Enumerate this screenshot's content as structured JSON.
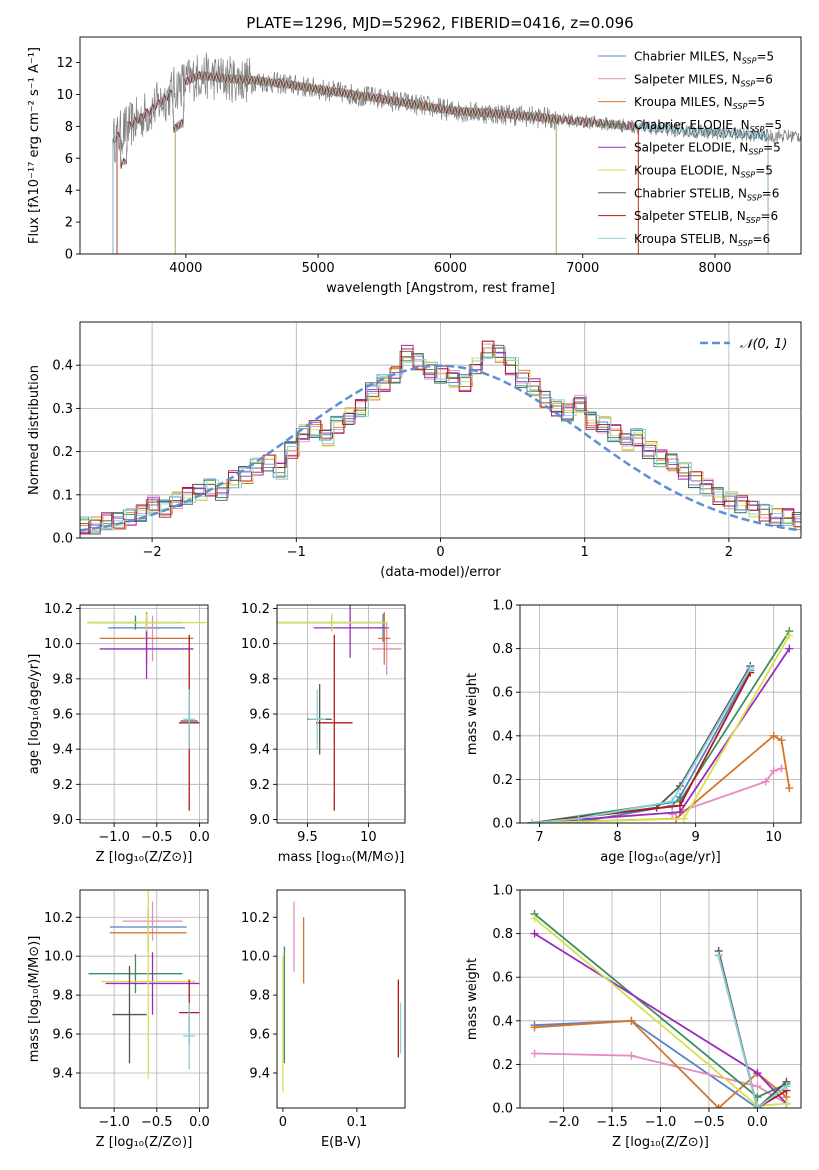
{
  "figure_title": "PLATE=1296, MJD=52962, FIBERID=0416, z=0.096",
  "colors": {
    "C0": "#5b7fc4",
    "C1": "#e58cc2",
    "C2": "#d4772c",
    "C3": "#3d8f5f",
    "C4": "#9a2bbf",
    "C5": "#d7e04f",
    "C6": "#555555",
    "C7": "#b21a1a",
    "C8": "#86d2d6",
    "data": "#808080",
    "normal": "#5b8fd6",
    "grid": "#b0b0b0"
  },
  "chart_data": [
    {
      "id": "spectrum",
      "type": "line",
      "xlabel": "wavelength [Angstrom, rest frame]",
      "ylabel": "Flux [fλ10⁻¹⁷ erg cm⁻² s⁻¹ A⁻¹]",
      "xlim": [
        3200,
        8650
      ],
      "ylim": [
        0,
        13.6
      ],
      "xticks": [
        4000,
        5000,
        6000,
        7000,
        8000
      ],
      "yticks": [
        0,
        2,
        4,
        6,
        8,
        10,
        12
      ],
      "grid": false,
      "legend_position": "top-right",
      "series": [
        {
          "name": "Chabrier MILES, N",
          "sub": "SSP",
          "suffix": "=5",
          "color": "C0"
        },
        {
          "name": "Salpeter MILES, N",
          "sub": "SSP",
          "suffix": "=6",
          "color": "C1"
        },
        {
          "name": "Kroupa MILES, N",
          "sub": "SSP",
          "suffix": "=5",
          "color": "C2"
        },
        {
          "name": "Chabrier ELODIE, N",
          "sub": "SSP",
          "suffix": "=5",
          "color": "C3"
        },
        {
          "name": "Salpeter ELODIE, N",
          "sub": "SSP",
          "suffix": "=5",
          "color": "C4"
        },
        {
          "name": "Kroupa ELODIE, N",
          "sub": "SSP",
          "suffix": "=5",
          "color": "C5"
        },
        {
          "name": "Chabrier STELIB, N",
          "sub": "SSP",
          "suffix": "=6",
          "color": "C6"
        },
        {
          "name": "Salpeter STELIB, N",
          "sub": "SSP",
          "suffix": "=6",
          "color": "C7"
        },
        {
          "name": "Kroupa STELIB, N",
          "sub": "SSP",
          "suffix": "=6",
          "color": "C8"
        }
      ],
      "model_continuum": [
        [
          3450,
          7.1
        ],
        [
          3550,
          7.9
        ],
        [
          3700,
          8.8
        ],
        [
          3850,
          9.8
        ],
        [
          3950,
          10.6
        ],
        [
          4100,
          11.2
        ],
        [
          4300,
          11.0
        ],
        [
          4500,
          10.9
        ],
        [
          4800,
          10.6
        ],
        [
          5100,
          10.2
        ],
        [
          5500,
          9.7
        ],
        [
          6000,
          9.0
        ],
        [
          6500,
          8.7
        ],
        [
          7000,
          8.3
        ],
        [
          7500,
          7.9
        ],
        [
          8000,
          7.6
        ],
        [
          8400,
          7.4
        ]
      ],
      "data_range": [
        3450,
        8650
      ]
    },
    {
      "id": "residuals",
      "type": "histogram",
      "xlabel": "(data-model)/error",
      "ylabel": "Normed distribution",
      "xlim": [
        -2.5,
        2.5
      ],
      "ylim": [
        0,
        0.5
      ],
      "xticks": [
        -2,
        -1,
        0,
        1,
        2
      ],
      "xtick_labels": [
        "−2",
        "−1",
        "0",
        "1",
        "2"
      ],
      "yticks": [
        0.0,
        0.1,
        0.2,
        0.3,
        0.4
      ],
      "grid": true,
      "legend": "𝒩(0, 1)",
      "legend_position": "top-right",
      "bin_width": 0.1,
      "reference_curve": "normal(0,1)",
      "approx_hist": [
        0.02,
        0.03,
        0.03,
        0.04,
        0.04,
        0.05,
        0.06,
        0.08,
        0.07,
        0.09,
        0.1,
        0.11,
        0.12,
        0.11,
        0.14,
        0.15,
        0.17,
        0.18,
        0.16,
        0.21,
        0.25,
        0.26,
        0.24,
        0.27,
        0.29,
        0.31,
        0.35,
        0.37,
        0.39,
        0.44,
        0.42,
        0.4,
        0.39,
        0.38,
        0.37,
        0.41,
        0.45,
        0.44,
        0.41,
        0.38,
        0.36,
        0.33,
        0.31,
        0.3,
        0.32,
        0.28,
        0.27,
        0.25,
        0.23,
        0.24,
        0.21,
        0.19,
        0.18,
        0.16,
        0.14,
        0.12,
        0.1,
        0.09,
        0.08,
        0.07,
        0.06,
        0.05,
        0.05,
        0.04,
        0.03,
        0.03,
        0.02,
        0.02,
        0.02,
        0.01,
        0.01,
        0.01,
        0.01
      ]
    },
    {
      "id": "age_vs_Z",
      "type": "scatter",
      "xlabel": "Z [log₁₀(Z/Z⊙)]",
      "ylabel": "age  [log₁₀(age/yr)]",
      "xlim": [
        -1.4,
        0.1
      ],
      "ylim": [
        8.98,
        10.22
      ],
      "xticks": [
        -1.0,
        -0.5,
        0.0
      ],
      "xtick_labels": [
        "−1.0",
        "−0.5",
        "0.0"
      ],
      "yticks": [
        9.0,
        9.2,
        9.4,
        9.6,
        9.8,
        10.0,
        10.2
      ],
      "grid": true,
      "points": [
        {
          "color": "C0",
          "x": -0.62,
          "xerr": 0.45,
          "y": 10.09,
          "yerr": 0.07
        },
        {
          "color": "C1",
          "x": -0.55,
          "xerr": 0.35,
          "y": 10.03,
          "yerr": 0.13
        },
        {
          "color": "C2",
          "x": -0.62,
          "xerr": 0.55,
          "y": 10.03,
          "yerr": 0.15
        },
        {
          "color": "C3",
          "x": -0.75,
          "xerr": 0.55,
          "y": 10.12,
          "yerr": 0.04
        },
        {
          "color": "C4",
          "x": -0.62,
          "xerr": 0.55,
          "y": 9.97,
          "yerr": 0.17
        },
        {
          "color": "C5",
          "x": -0.62,
          "xerr": 0.7,
          "y": 10.12,
          "yerr": 0.05
        },
        {
          "color": "C6",
          "x": -0.12,
          "xerr": 0.1,
          "y": 9.56,
          "yerr": 0.14
        },
        {
          "color": "C7",
          "x": -0.12,
          "xerr": 0.12,
          "y": 9.55,
          "yerr": 0.5
        },
        {
          "color": "C8",
          "x": -0.12,
          "xerr": 0.07,
          "y": 9.57,
          "yerr": 0.17
        }
      ]
    },
    {
      "id": "age_vs_mass",
      "type": "scatter",
      "xlabel": "mass [log₁₀(M/M⊙)]",
      "ylabel": "",
      "xlim": [
        9.25,
        10.3
      ],
      "ylim": [
        8.98,
        10.22
      ],
      "xticks": [
        9.5,
        10.0
      ],
      "yticks": [
        9.0,
        9.2,
        9.4,
        9.6,
        9.8,
        10.0,
        10.2
      ],
      "grid": true,
      "points": [
        {
          "color": "C0",
          "x": 10.12,
          "xerr": 0.05,
          "y": 10.09,
          "yerr": 0.08
        },
        {
          "color": "C1",
          "x": 10.15,
          "xerr": 0.12,
          "y": 9.97,
          "yerr": 0.15
        },
        {
          "color": "C2",
          "x": 10.13,
          "xerr": 0.05,
          "y": 10.03,
          "yerr": 0.15
        },
        {
          "color": "C3",
          "x": 9.7,
          "xerr": 0.45,
          "y": 10.12,
          "yerr": 0.05
        },
        {
          "color": "C4",
          "x": 9.85,
          "xerr": 0.3,
          "y": 10.09,
          "yerr": 0.17
        },
        {
          "color": "C5",
          "x": 9.7,
          "xerr": 0.45,
          "y": 10.12,
          "yerr": 0.05
        },
        {
          "color": "C6",
          "x": 9.6,
          "xerr": 0.1,
          "y": 9.57,
          "yerr": 0.2
        },
        {
          "color": "C7",
          "x": 9.72,
          "xerr": 0.15,
          "y": 9.55,
          "yerr": 0.5
        },
        {
          "color": "C8",
          "x": 9.58,
          "xerr": 0.07,
          "y": 9.57,
          "yerr": 0.17
        }
      ]
    },
    {
      "id": "weight_vs_age",
      "type": "line",
      "xlabel": "age  [log₁₀(age/yr)]",
      "ylabel": "mass weight",
      "xlim": [
        6.75,
        10.35
      ],
      "ylim": [
        0,
        1
      ],
      "xticks": [
        7,
        8,
        9,
        10
      ],
      "yticks": [
        0.0,
        0.2,
        0.4,
        0.6,
        0.8,
        1.0
      ],
      "grid": true,
      "series": [
        {
          "color": "C0",
          "points": [
            [
              6.9,
              0.0
            ],
            [
              7.6,
              0.01
            ],
            [
              8.7,
              0.08
            ],
            [
              8.8,
              0.12
            ],
            [
              9.7,
              0.7
            ]
          ]
        },
        {
          "color": "C1",
          "points": [
            [
              8.7,
              0.04
            ],
            [
              9.9,
              0.19
            ],
            [
              10.0,
              0.24
            ],
            [
              10.1,
              0.25
            ]
          ]
        },
        {
          "color": "C2",
          "points": [
            [
              6.9,
              0.0
            ],
            [
              8.75,
              0.02
            ],
            [
              10.0,
              0.4
            ],
            [
              10.1,
              0.38
            ],
            [
              10.2,
              0.16
            ]
          ]
        },
        {
          "color": "C3",
          "points": [
            [
              6.9,
              0.0
            ],
            [
              8.8,
              0.1
            ],
            [
              10.2,
              0.88
            ]
          ]
        },
        {
          "color": "C4",
          "points": [
            [
              6.9,
              0.0
            ],
            [
              8.8,
              0.05
            ],
            [
              10.2,
              0.8
            ]
          ]
        },
        {
          "color": "C5",
          "points": [
            [
              6.9,
              0.0
            ],
            [
              8.85,
              0.02
            ],
            [
              10.2,
              0.86
            ]
          ]
        },
        {
          "color": "C6",
          "points": [
            [
              6.9,
              0.0
            ],
            [
              8.5,
              0.07
            ],
            [
              8.8,
              0.17
            ],
            [
              9.7,
              0.72
            ]
          ]
        },
        {
          "color": "C7",
          "points": [
            [
              6.9,
              0.0
            ],
            [
              8.8,
              0.08
            ],
            [
              9.7,
              0.69
            ]
          ]
        },
        {
          "color": "C8",
          "points": [
            [
              6.9,
              0.0
            ],
            [
              7.5,
              0.02
            ],
            [
              8.7,
              0.1
            ],
            [
              9.7,
              0.71
            ]
          ]
        }
      ]
    },
    {
      "id": "mass_vs_Z",
      "type": "scatter",
      "xlabel": "Z [log₁₀(Z/Z⊙)]",
      "ylabel": "mass [log₁₀(M/M⊙)]",
      "xlim": [
        -1.4,
        0.1
      ],
      "ylim": [
        9.22,
        10.34
      ],
      "xticks": [
        -1.0,
        -0.5,
        0.0
      ],
      "xtick_labels": [
        "−1.0",
        "−0.5",
        "0.0"
      ],
      "yticks": [
        9.4,
        9.6,
        9.8,
        10.0,
        10.2
      ],
      "grid": true,
      "points": [
        {
          "color": "C0",
          "x": -0.6,
          "xerr": 0.45,
          "y": 10.15,
          "yerr": 0.1
        },
        {
          "color": "C1",
          "x": -0.55,
          "xerr": 0.35,
          "y": 10.18,
          "yerr": 0.1
        },
        {
          "color": "C2",
          "x": -0.6,
          "xerr": 0.45,
          "y": 10.12,
          "yerr": 0.1
        },
        {
          "color": "C3",
          "x": -0.75,
          "xerr": 0.55,
          "y": 9.91,
          "yerr": 0.1
        },
        {
          "color": "C4",
          "x": -0.55,
          "xerr": 0.55,
          "y": 9.86,
          "yerr": 0.16
        },
        {
          "color": "C5",
          "x": -0.6,
          "xerr": 0.55,
          "y": 9.87,
          "yerr": 0.5
        },
        {
          "color": "C6",
          "x": -0.82,
          "xerr": 0.2,
          "y": 9.7,
          "yerr": 0.25
        },
        {
          "color": "C7",
          "x": -0.12,
          "xerr": 0.12,
          "y": 9.71,
          "yerr": 0.17
        },
        {
          "color": "C8",
          "x": -0.12,
          "xerr": 0.07,
          "y": 9.59,
          "yerr": 0.17
        }
      ]
    },
    {
      "id": "mass_vs_EBV",
      "type": "scatter",
      "xlabel": "E(B-V)",
      "ylabel": "",
      "xlim": [
        -0.008,
        0.165
      ],
      "ylim": [
        9.22,
        10.34
      ],
      "xticks": [
        0.0,
        0.1
      ],
      "yticks": [
        9.4,
        9.6,
        9.8,
        10.0,
        10.2
      ],
      "grid": false,
      "points": [
        {
          "color": "C1",
          "x": 0.015,
          "xerr": 0.0,
          "y": 10.1,
          "yerr": 0.18
        },
        {
          "color": "C2",
          "x": 0.028,
          "xerr": 0.0,
          "y": 10.03,
          "yerr": 0.17
        },
        {
          "color": "C3",
          "x": 0.002,
          "xerr": 0.0,
          "y": 9.75,
          "yerr": 0.3
        },
        {
          "color": "C5",
          "x": 0.0,
          "xerr": 0.0,
          "y": 9.65,
          "yerr": 0.35
        },
        {
          "color": "C7",
          "x": 0.156,
          "xerr": 0.0,
          "y": 9.68,
          "yerr": 0.2
        },
        {
          "color": "C8",
          "x": 0.159,
          "xerr": 0.0,
          "y": 9.63,
          "yerr": 0.13
        }
      ]
    },
    {
      "id": "weight_vs_Z",
      "type": "line",
      "xlabel": "Z [log₁₀(Z/Z⊙)]",
      "ylabel": "mass weight",
      "xlim": [
        -2.45,
        0.45
      ],
      "ylim": [
        0,
        1
      ],
      "xticks": [
        -2.0,
        -1.5,
        -1.0,
        -0.5,
        0.0
      ],
      "xtick_labels": [
        "−2.0",
        "−1.5",
        "−1.0",
        "−0.5",
        "0.0"
      ],
      "yticks": [
        0.0,
        0.2,
        0.4,
        0.6,
        0.8,
        1.0
      ],
      "grid": true,
      "series": [
        {
          "color": "C0",
          "points": [
            [
              -2.3,
              0.38
            ],
            [
              -1.3,
              0.4
            ],
            [
              0.0,
              0.0
            ],
            [
              0.3,
              0.1
            ]
          ]
        },
        {
          "color": "C1",
          "points": [
            [
              -2.3,
              0.25
            ],
            [
              -1.3,
              0.24
            ],
            [
              0.0,
              0.1
            ],
            [
              0.3,
              0.02
            ]
          ]
        },
        {
          "color": "C2",
          "points": [
            [
              -2.3,
              0.37
            ],
            [
              -1.3,
              0.4
            ],
            [
              -0.4,
              0.0
            ],
            [
              0.0,
              0.16
            ],
            [
              0.3,
              0.05
            ]
          ]
        },
        {
          "color": "C3",
          "points": [
            [
              -2.3,
              0.89
            ],
            [
              0.0,
              0.05
            ],
            [
              0.3,
              0.11
            ]
          ]
        },
        {
          "color": "C4",
          "points": [
            [
              -2.3,
              0.8
            ],
            [
              0.0,
              0.16
            ],
            [
              0.3,
              0.02
            ]
          ]
        },
        {
          "color": "C5",
          "points": [
            [
              -2.3,
              0.87
            ],
            [
              0.0,
              0.01
            ],
            [
              0.3,
              0.02
            ]
          ]
        },
        {
          "color": "C6",
          "points": [
            [
              -0.4,
              0.72
            ],
            [
              0.0,
              0.0
            ],
            [
              0.3,
              0.12
            ]
          ]
        },
        {
          "color": "C7",
          "points": [
            [
              -0.4,
              0.7
            ],
            [
              0.0,
              0.0
            ],
            [
              0.3,
              0.08
            ]
          ]
        },
        {
          "color": "C8",
          "points": [
            [
              -0.4,
              0.7
            ],
            [
              0.0,
              0.0
            ],
            [
              0.3,
              0.1
            ]
          ]
        }
      ]
    }
  ]
}
